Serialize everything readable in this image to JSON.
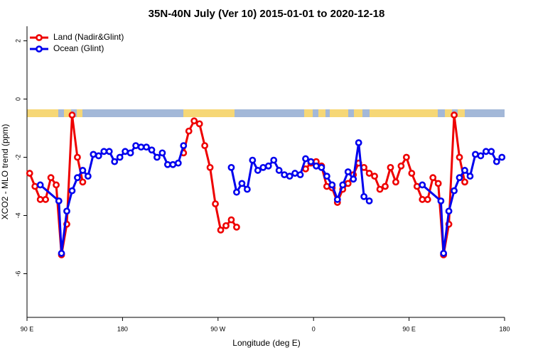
{
  "chart_data": {
    "type": "line",
    "title": "35N-40N July (Ver 10)   2015-01-01 to 2020-12-18",
    "x_label": "Longitude (deg E)",
    "y_label": "XCO2 - MLO trend (ppm)",
    "xlim": [
      90,
      540
    ],
    "ylim": [
      -7.5,
      2.5
    ],
    "xticks": [
      {
        "value": 90,
        "label": "90 E"
      },
      {
        "value": 180,
        "label": "180"
      },
      {
        "value": 270,
        "label": "90 W"
      },
      {
        "value": 360,
        "label": "0"
      },
      {
        "value": 450,
        "label": "90 E"
      },
      {
        "value": 540,
        "label": "180"
      }
    ],
    "yticks": [
      2,
      0,
      -2,
      -4,
      -6
    ],
    "legend": "top-left",
    "series": [
      {
        "name": "Land (Nadir&Glint)",
        "color": "#ee0000",
        "x": [
          92.5,
          97.5,
          102.5,
          107.5,
          112.5,
          117.5,
          122.5,
          127.5,
          132.5,
          137.5,
          142.5,
          147.5,
          237.5,
          242.5,
          247.5,
          252.5,
          257.5,
          262.5,
          267.5,
          272.5,
          277.5,
          282.5,
          287.5,
          292.5,
          352.5,
          357.5,
          362.5,
          367.5,
          372.5,
          377.5,
          382.5,
          387.5,
          392.5,
          397.5,
          402.5,
          407.5,
          412.5,
          417.5,
          422.5,
          427.5,
          432.5,
          437.5,
          442.5,
          447.5,
          452.5,
          457.5,
          462.5,
          467.5,
          472.5,
          477.5,
          482.5,
          487.5,
          492.5,
          497.5,
          502.5
        ],
        "values": [
          -2.55,
          -3.0,
          -3.45,
          -3.45,
          -2.7,
          -2.95,
          -5.35,
          -4.3,
          -0.55,
          -2.0,
          -2.85,
          null,
          -1.85,
          -1.1,
          -0.75,
          -0.85,
          -1.6,
          -2.35,
          -3.6,
          -4.5,
          -4.35,
          -4.15,
          -4.4,
          null,
          -2.4,
          -2.2,
          -2.15,
          -2.3,
          -3.0,
          -3.05,
          -3.55,
          -3.1,
          -2.9,
          -2.6,
          -2.2,
          -2.35,
          -2.55,
          -2.65,
          -3.1,
          -3.0,
          -2.35,
          -2.85,
          -2.3,
          -2.0,
          -2.55,
          -3.0,
          -3.45,
          -3.45,
          -2.7,
          -2.9,
          -5.35,
          -4.3,
          -0.55,
          -2.0,
          -2.85
        ]
      },
      {
        "name": "Ocean (Glint)",
        "color": "#0000ee",
        "x": [
          102.5,
          120,
          122.5,
          127.5,
          132.5,
          137.5,
          142.5,
          147.5,
          152.5,
          157.5,
          162.5,
          167.5,
          172.5,
          177.5,
          182.5,
          187.5,
          192.5,
          197.5,
          202.5,
          207.5,
          212.5,
          217.5,
          222.5,
          227.5,
          232.5,
          237.5,
          242.5,
          282.5,
          287.5,
          292.5,
          297.5,
          302.5,
          307.5,
          312.5,
          317.5,
          322.5,
          327.5,
          332.5,
          337.5,
          342.5,
          347.5,
          352.5,
          357.5,
          362.5,
          367.5,
          372.5,
          377.5,
          382.5,
          387.5,
          392.5,
          397.5,
          402.5,
          407.5,
          412.5,
          417.5,
          462.5,
          480,
          482.5,
          487.5,
          492.5,
          497.5,
          502.5,
          507.5,
          512.5,
          517.5,
          522.5,
          527.5,
          532.5,
          537.5
        ],
        "values": [
          -2.95,
          -3.5,
          -5.3,
          -3.85,
          -3.15,
          -2.7,
          -2.45,
          -2.65,
          -1.9,
          -1.95,
          -1.8,
          -1.8,
          -2.15,
          -2.0,
          -1.8,
          -1.85,
          -1.6,
          -1.65,
          -1.65,
          -1.75,
          -2.0,
          -1.85,
          -2.25,
          -2.25,
          -2.2,
          -1.6,
          null,
          -2.35,
          -3.2,
          -2.9,
          -3.1,
          -2.1,
          -2.45,
          -2.35,
          -2.3,
          -2.1,
          -2.45,
          -2.6,
          -2.65,
          -2.55,
          -2.6,
          -2.05,
          -2.15,
          -2.3,
          -2.35,
          -2.65,
          -2.95,
          -3.45,
          -2.95,
          -2.5,
          -2.75,
          -1.5,
          -3.35,
          -3.5,
          null,
          -2.95,
          -3.5,
          -5.3,
          -3.85,
          -3.15,
          -2.7,
          -2.45,
          -2.65,
          -1.9,
          -1.95,
          -1.8,
          -1.8,
          -2.15,
          -2.0
        ]
      }
    ]
  }
}
